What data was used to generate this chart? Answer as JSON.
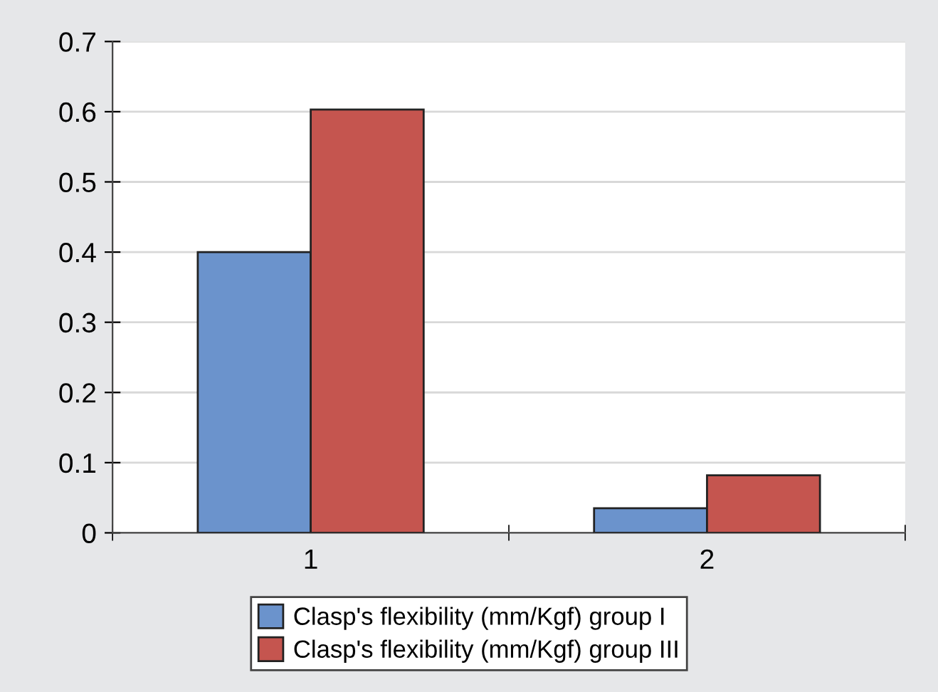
{
  "chart_data": {
    "type": "bar",
    "categories": [
      "1",
      "2"
    ],
    "series": [
      {
        "name": "Clasp's flexibility (mm/Kgf) group I",
        "color": "#6b93cc",
        "values": [
          0.4,
          0.035
        ]
      },
      {
        "name": "Clasp's flexibility (mm/Kgf) group III",
        "color": "#c5554f",
        "values": [
          0.603,
          0.082
        ]
      }
    ],
    "ylim": [
      0,
      0.7
    ],
    "yticks": [
      0,
      0.1,
      0.2,
      0.3,
      0.4,
      0.5,
      0.6,
      0.7
    ],
    "grid": "y",
    "legend": "bottom"
  }
}
